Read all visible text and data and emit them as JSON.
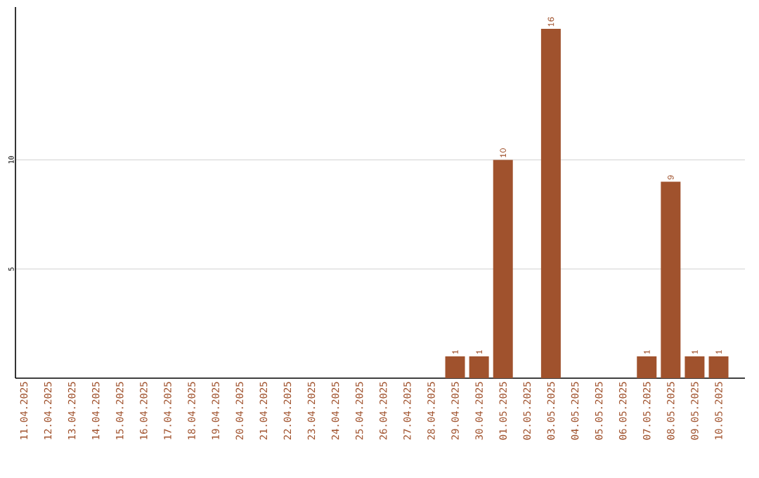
{
  "chart_data": {
    "type": "bar",
    "categories": [
      "11.04.2025",
      "12.04.2025",
      "13.04.2025",
      "14.04.2025",
      "15.04.2025",
      "16.04.2025",
      "17.04.2025",
      "18.04.2025",
      "19.04.2025",
      "20.04.2025",
      "21.04.2025",
      "22.04.2025",
      "23.04.2025",
      "24.04.2025",
      "25.04.2025",
      "26.04.2025",
      "27.04.2025",
      "28.04.2025",
      "29.04.2025",
      "30.04.2025",
      "01.05.2025",
      "02.05.2025",
      "03.05.2025",
      "04.05.2025",
      "05.05.2025",
      "06.05.2025",
      "07.05.2025",
      "08.05.2025",
      "09.05.2025",
      "10.05.2025"
    ],
    "values": [
      0,
      0,
      0,
      0,
      0,
      0,
      0,
      0,
      0,
      0,
      0,
      0,
      0,
      0,
      0,
      0,
      0,
      0,
      1,
      1,
      10,
      0,
      16,
      0,
      0,
      0,
      1,
      9,
      1,
      1
    ],
    "value_labels": [
      null,
      null,
      null,
      null,
      null,
      null,
      null,
      null,
      null,
      null,
      null,
      null,
      null,
      null,
      null,
      null,
      null,
      null,
      "1",
      "1",
      "10",
      null,
      "16",
      null,
      null,
      null,
      "1",
      "9",
      "1",
      "1"
    ],
    "color": "#a0522d",
    "ylim": [
      0,
      17
    ],
    "yticks": [
      5,
      10
    ],
    "grid": "y"
  }
}
